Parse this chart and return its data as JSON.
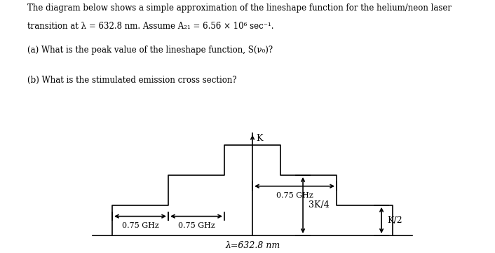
{
  "title_line1": "The diagram below shows a simple approximation of the lineshape function for the helium/neon laser",
  "title_line2": "transition at λ = 632.8 nm. Assume A₂₁ = 6.56 × 10⁶ sec⁻¹.",
  "question_a": "(a) What is the peak value of the lineshape function, S(ν₀)?",
  "question_b": "(b) What is the stimulated emission cross section?",
  "xlabel": "λ=632.8 nm",
  "label_K": "K",
  "label_3K4": "3K/4",
  "label_K2": "K/2",
  "label_075a": "0.75 GHz",
  "label_075b": "0.75 GHz",
  "label_075c": "0.75 GHz",
  "bg_color": "#ffffff",
  "line_color": "#000000",
  "text_color": "#000000",
  "fig_width": 7.06,
  "fig_height": 3.61,
  "dpi": 100
}
